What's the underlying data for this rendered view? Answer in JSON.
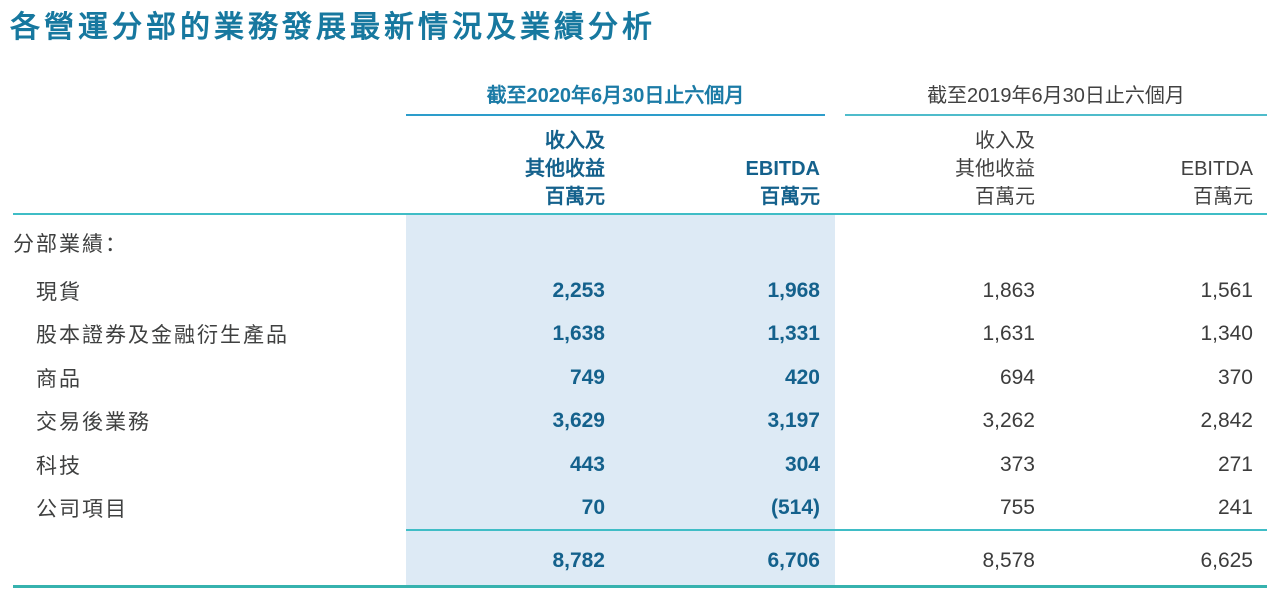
{
  "page_title": "各營運分部的業務發展最新情況及業績分析",
  "colors": {
    "title_blue": "#17789f",
    "value_blue": "#14618c",
    "header_blue": "#1b7ba6",
    "text_dark": "#3f4040",
    "shade_blue": "#ddeaf5",
    "rule_teal": "#3fbdc6",
    "rule_blue_2020": "#2d9dcb",
    "rule_cyan_2019": "#4fbccb",
    "rule_bottom_teal": "#36b2ae"
  },
  "table": {
    "groups": [
      {
        "title": "截至2020年6月30日止六個月",
        "col_revenue": {
          "line1": "收入及",
          "line2": "其他收益",
          "line3": "百萬元"
        },
        "col_ebitda": {
          "line2": "EBITDA",
          "line3": "百萬元"
        }
      },
      {
        "title": "截至2019年6月30日止六個月",
        "col_revenue": {
          "line1": "收入及",
          "line2": "其他收益",
          "line3": "百萬元"
        },
        "col_ebitda": {
          "line2": "EBITDA",
          "line3": "百萬元"
        }
      }
    ],
    "section_label": "分部業績：",
    "rows": [
      {
        "label": "現貨",
        "values": [
          "2,253",
          "1,968",
          "1,863",
          "1,561"
        ]
      },
      {
        "label": "股本證券及金融衍生產品",
        "values": [
          "1,638",
          "1,331",
          "1,631",
          "1,340"
        ]
      },
      {
        "label": "商品",
        "values": [
          "749",
          "420",
          "694",
          "370"
        ]
      },
      {
        "label": "交易後業務",
        "values": [
          "3,629",
          "3,197",
          "3,262",
          "2,842"
        ]
      },
      {
        "label": "科技",
        "values": [
          "443",
          "304",
          "373",
          "271"
        ]
      },
      {
        "label": "公司項目",
        "values": [
          "70",
          "(514)",
          "755",
          "241"
        ]
      }
    ],
    "total_row": {
      "values": [
        "8,782",
        "6,706",
        "8,578",
        "6,625"
      ]
    }
  }
}
